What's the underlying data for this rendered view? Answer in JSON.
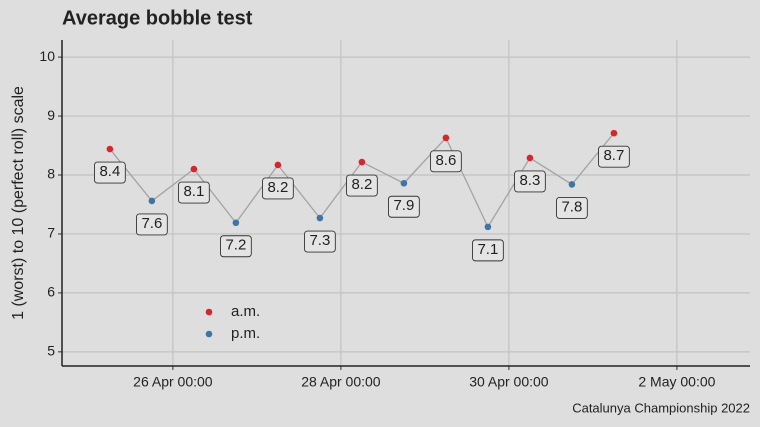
{
  "chart_data": {
    "type": "line",
    "title": "Average bobble test",
    "y_label": "1 (worst) to 10 (perfect roll) scale",
    "caption": "Catalunya Championship 2022",
    "xlim": [
      24.68,
      32.87
    ],
    "ylim": [
      4.76,
      10.29
    ],
    "xticks": [
      {
        "value": 26,
        "label": "26 Apr 00:00"
      },
      {
        "value": 28,
        "label": "28 Apr 00:00"
      },
      {
        "value": 30,
        "label": "30 Apr 00:00"
      },
      {
        "value": 32,
        "label": "2 May 00:00"
      }
    ],
    "yticks": [
      5,
      6,
      7,
      8,
      9,
      10
    ],
    "grid": true,
    "line_color": "#a3a3a3",
    "series": [
      {
        "name": "a.m.",
        "color": "#d7262b",
        "x": [
          25.25,
          26.25,
          27.25,
          28.25,
          29.25,
          30.25,
          31.25
        ],
        "values": [
          8.44,
          8.1,
          8.17,
          8.22,
          8.63,
          8.29,
          8.71
        ]
      },
      {
        "name": "p.m.",
        "color": "#3f74a6",
        "x": [
          25.75,
          26.75,
          27.75,
          28.75,
          29.75,
          30.75
        ],
        "values": [
          7.56,
          7.19,
          7.27,
          7.86,
          7.12,
          7.84
        ]
      }
    ]
  }
}
